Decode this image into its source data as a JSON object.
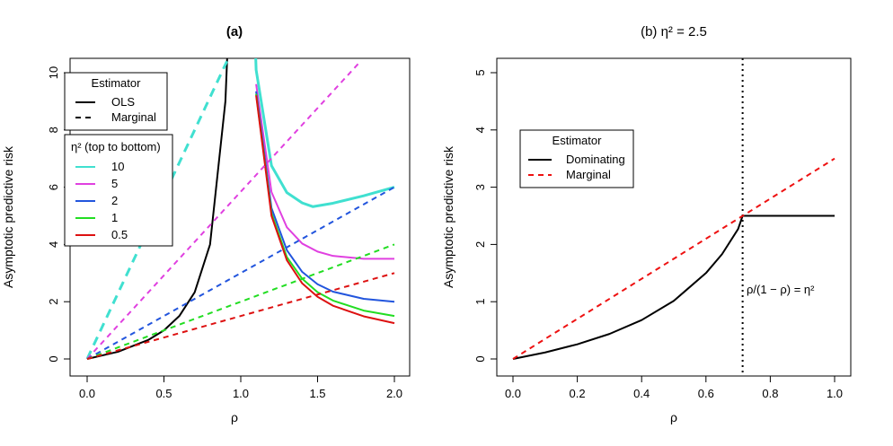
{
  "chart_data": [
    {
      "type": "line",
      "title": "(a)",
      "xlabel": "ρ",
      "ylabel": "Asymptotic predictive risk",
      "xlim": [
        0,
        2
      ],
      "ylim": [
        0,
        10
      ],
      "xticks": [
        "0.0",
        "0.5",
        "1.0",
        "1.5",
        "2.0"
      ],
      "yticks": [
        "0",
        "2",
        "4",
        "6",
        "8",
        "10"
      ],
      "legend": {
        "position": "top-left",
        "estimator_title": "Estimator",
        "estimator_entries": [
          {
            "label": "OLS",
            "style": "solid"
          },
          {
            "label": "Marginal",
            "style": "dashed"
          }
        ],
        "eta_title": "η² (top to bottom)",
        "eta_entries": [
          {
            "label": "10",
            "color": "#40E0D0"
          },
          {
            "label": "5",
            "color": "#E040E0"
          },
          {
            "label": "2",
            "color": "#2255DD"
          },
          {
            "label": "1",
            "color": "#22DD22"
          },
          {
            "label": "0.5",
            "color": "#DD1111"
          }
        ]
      },
      "series": [
        {
          "estimator": "OLS",
          "rho": [
            0,
            0.2,
            0.4,
            0.5,
            0.6,
            0.7,
            0.8,
            0.9,
            0.925
          ],
          "risk": [
            0,
            0.25,
            0.67,
            1.0,
            1.5,
            2.33,
            4.0,
            9.0,
            12.3
          ]
        },
        {
          "estimator": "OLS",
          "eta2": 10,
          "color": "#40E0D0",
          "rho": [
            1.08,
            1.1,
            1.2,
            1.3,
            1.4,
            1.47,
            1.6,
            1.8,
            2.0
          ],
          "risk": [
            13.4,
            10.1,
            6.75,
            5.81,
            5.45,
            5.32,
            5.44,
            5.7,
            6.0
          ]
        },
        {
          "estimator": "OLS",
          "eta2": 5,
          "color": "#E040E0",
          "rho": [
            1.1,
            1.2,
            1.3,
            1.4,
            1.5,
            1.6,
            1.8,
            2.0
          ],
          "risk": [
            9.6,
            5.83,
            4.6,
            4.03,
            3.75,
            3.6,
            3.5,
            3.5
          ]
        },
        {
          "estimator": "OLS",
          "eta2": 2,
          "color": "#2255DD",
          "rho": [
            1.1,
            1.2,
            1.3,
            1.4,
            1.5,
            1.6,
            1.8,
            2.0
          ],
          "risk": [
            9.35,
            5.27,
            3.8,
            3.04,
            2.61,
            2.35,
            2.1,
            2.0
          ]
        },
        {
          "estimator": "OLS",
          "eta2": 1,
          "color": "#22DD22",
          "rho": [
            1.1,
            1.2,
            1.3,
            1.4,
            1.5,
            1.6,
            1.8,
            2.0
          ],
          "risk": [
            9.26,
            5.09,
            3.56,
            2.8,
            2.33,
            2.04,
            1.69,
            1.5
          ]
        },
        {
          "estimator": "OLS",
          "eta2": 0.5,
          "color": "#DD1111",
          "rho": [
            1.1,
            1.2,
            1.3,
            1.4,
            1.5,
            1.6,
            1.8,
            2.0
          ],
          "risk": [
            9.21,
            5.0,
            3.45,
            2.64,
            2.17,
            1.86,
            1.49,
            1.25
          ]
        },
        {
          "estimator": "Marginal",
          "eta2": 10,
          "color": "#40E0D0",
          "rho": [
            0,
            0.91
          ],
          "risk": [
            0,
            10.4
          ]
        },
        {
          "estimator": "Marginal",
          "eta2": 5,
          "color": "#E040E0",
          "rho": [
            0,
            1.78
          ],
          "risk": [
            0,
            10.4
          ]
        },
        {
          "estimator": "Marginal",
          "eta2": 2,
          "color": "#2255DD",
          "rho": [
            0,
            2.0
          ],
          "risk": [
            0,
            6.0
          ]
        },
        {
          "estimator": "Marginal",
          "eta2": 1,
          "color": "#22DD22",
          "rho": [
            0,
            2.0
          ],
          "risk": [
            0,
            4.0
          ]
        },
        {
          "estimator": "Marginal",
          "eta2": 0.5,
          "color": "#DD1111",
          "rho": [
            0,
            2.0
          ],
          "risk": [
            0,
            3.0
          ]
        }
      ]
    },
    {
      "type": "line",
      "title": "(b) η² = 2.5",
      "xlabel": "ρ",
      "ylabel": "Asymptotic predictive risk",
      "xlim": [
        0,
        1
      ],
      "ylim": [
        0,
        5
      ],
      "xticks": [
        "0.0",
        "0.2",
        "0.4",
        "0.6",
        "0.8",
        "1.0"
      ],
      "yticks": [
        "0",
        "1",
        "2",
        "3",
        "4",
        "5"
      ],
      "vline": {
        "x": 0.714,
        "style": "dotted"
      },
      "annotation": "ρ/(1 − ρ) = η²",
      "legend": {
        "position": "left",
        "title": "Estimator",
        "entries": [
          {
            "label": "Dominating",
            "color": "#000000",
            "style": "solid"
          },
          {
            "label": "Marginal",
            "color": "#EE1111",
            "style": "dashed"
          }
        ]
      },
      "series": [
        {
          "name": "Dominating",
          "color": "#000000",
          "rho": [
            0,
            0.1,
            0.2,
            0.3,
            0.4,
            0.5,
            0.6,
            0.65,
            0.7,
            0.714,
            0.8,
            0.9,
            1.0
          ],
          "risk": [
            0,
            0.114,
            0.256,
            0.437,
            0.679,
            1.015,
            1.5,
            1.83,
            2.27,
            2.5,
            2.5,
            2.5,
            2.5
          ]
        },
        {
          "name": "Marginal",
          "color": "#EE1111",
          "rho": [
            0,
            1.0
          ],
          "risk": [
            0,
            3.5
          ]
        }
      ]
    }
  ]
}
